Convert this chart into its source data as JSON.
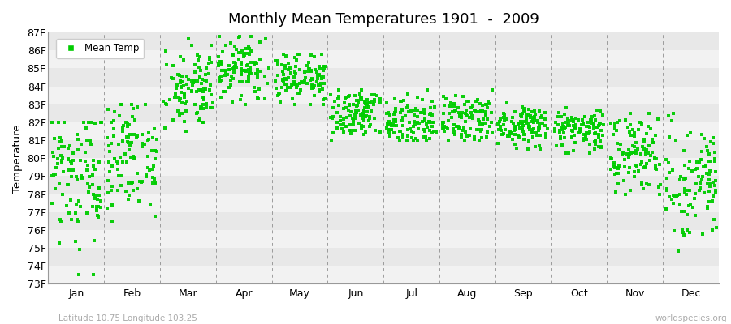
{
  "title": "Monthly Mean Temperatures 1901  -  2009",
  "ylabel": "Temperature",
  "xlabel_labels": [
    "Jan",
    "Feb",
    "Mar",
    "Apr",
    "May",
    "Jun",
    "Jul",
    "Aug",
    "Sep",
    "Oct",
    "Nov",
    "Dec"
  ],
  "ytick_labels": [
    "73F",
    "74F",
    "75F",
    "76F",
    "77F",
    "78F",
    "79F",
    "80F",
    "81F",
    "82F",
    "83F",
    "84F",
    "85F",
    "86F",
    "87F"
  ],
  "ylim": [
    73,
    87
  ],
  "ytick_vals": [
    73,
    74,
    75,
    76,
    77,
    78,
    79,
    80,
    81,
    82,
    83,
    84,
    85,
    86,
    87
  ],
  "legend_label": "Mean Temp",
  "dot_color": "#00cc00",
  "bg_light": "#f2f2f2",
  "bg_dark": "#e8e8e8",
  "grid_color": "#888888",
  "footer_left": "Latitude 10.75 Longitude 103.25",
  "footer_right": "worldspecies.org",
  "years": 109,
  "monthly_means": [
    78.8,
    80.2,
    83.8,
    84.9,
    84.5,
    82.5,
    82.0,
    82.1,
    81.8,
    81.6,
    80.2,
    78.8
  ],
  "monthly_stds": [
    1.9,
    1.6,
    1.1,
    0.85,
    0.75,
    0.65,
    0.65,
    0.65,
    0.55,
    0.65,
    1.05,
    1.55
  ],
  "monthly_mins": [
    73.5,
    76.5,
    81.5,
    83.0,
    83.0,
    81.0,
    81.0,
    81.0,
    80.5,
    80.3,
    78.0,
    74.0
  ],
  "monthly_maxs": [
    82.0,
    83.0,
    87.2,
    86.8,
    85.8,
    83.8,
    83.8,
    83.8,
    83.5,
    83.5,
    82.5,
    82.5
  ]
}
